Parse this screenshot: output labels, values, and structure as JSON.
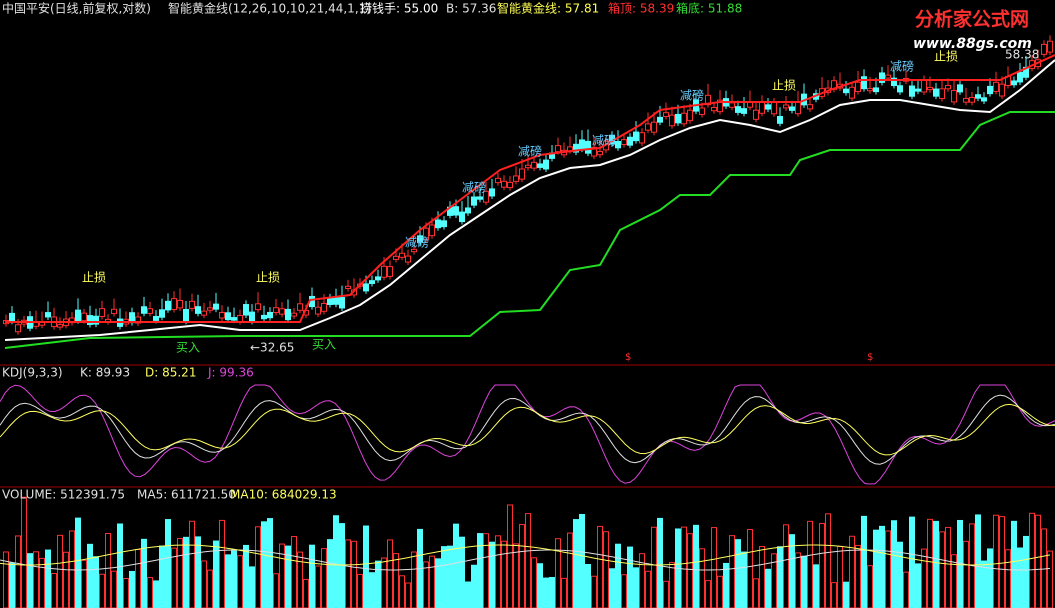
{
  "header": {
    "symbol": "中国平安(日线,前复权,对数)",
    "indicator": "智能黄金线(12,26,10,10,21,44,1,1)",
    "lqs": "捞钱手: 55.00",
    "b": "B: 57.36",
    "line": "智能黄金线: 57.81",
    "box_top": "箱顶: 58.39",
    "box_bottom": "箱底: 51.88"
  },
  "watermark": {
    "title": "分析家公式网",
    "url": "www.88gs.com"
  },
  "annotations": {
    "stop": [
      "止损",
      "止损",
      "止损",
      "止损"
    ],
    "reduce": [
      "减磅",
      "减磅",
      "减磅",
      "减磅",
      "减磅",
      "减磅"
    ],
    "buy": [
      "买入",
      "买入"
    ],
    "low": "←32.65",
    "high": "58.38",
    "signal": [
      "$",
      "$"
    ]
  },
  "kdj": {
    "label": "KDJ(9,3,3)",
    "k": "K: 89.93",
    "d": "D: 85.21",
    "j": "J: 99.36"
  },
  "volume": {
    "label": "VOLUME: 512391.75",
    "ma5": "MA5: 611721.50",
    "ma10": "MA10: 684029.13"
  }
}
